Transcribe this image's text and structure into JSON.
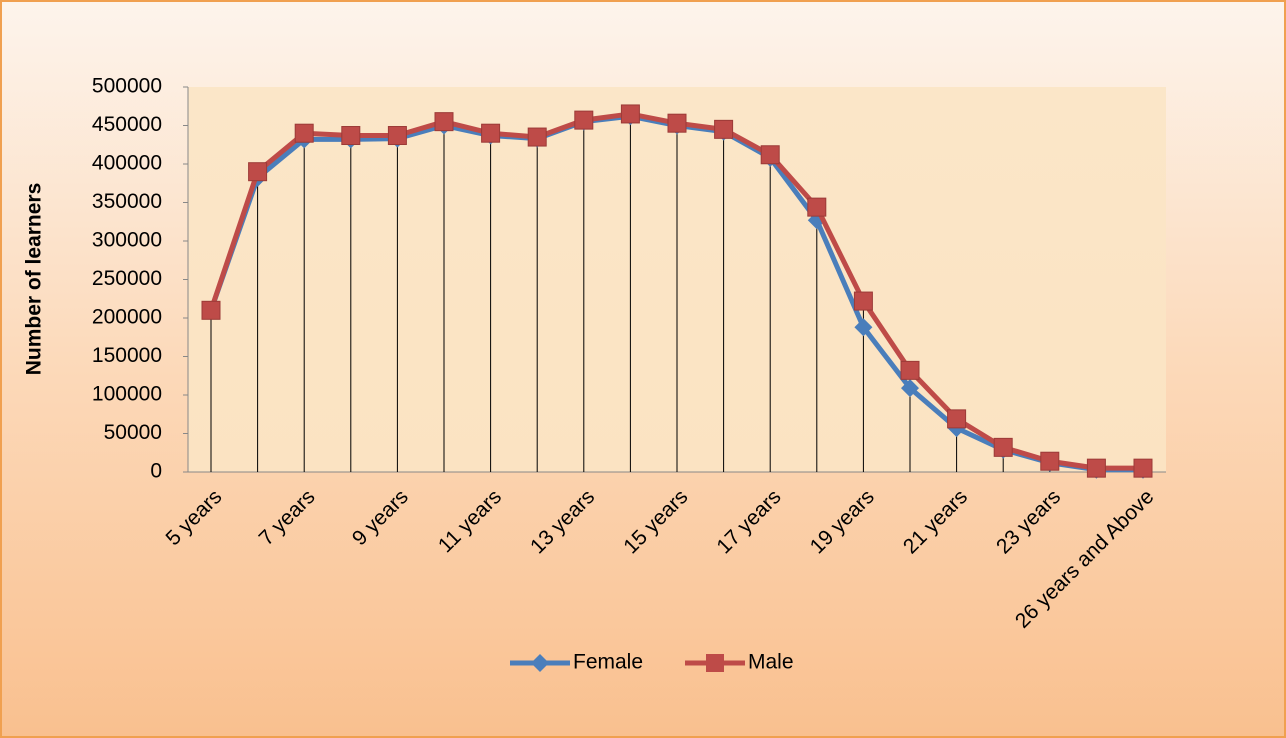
{
  "chart_data": {
    "type": "line",
    "y_axis_label": "Number of learners",
    "categories": [
      "5 years",
      null,
      "7 years",
      null,
      "9 years",
      null,
      "11 years",
      null,
      "13 years",
      null,
      "15 years",
      null,
      "17 years",
      null,
      "19 years",
      null,
      "21 years",
      null,
      "23 years",
      null,
      "26 years and Above"
    ],
    "series": [
      {
        "name": "Female",
        "color": "#4a7ebb",
        "marker": "diamond",
        "values": [
          210000,
          382000,
          432000,
          432000,
          433000,
          450000,
          437000,
          433000,
          455000,
          462000,
          450000,
          442000,
          408000,
          327000,
          188000,
          109000,
          57000,
          29000,
          12000,
          3000,
          3000
        ]
      },
      {
        "name": "Male",
        "color": "#be4b48",
        "marker": "square",
        "values": [
          210000,
          390000,
          440000,
          437000,
          437000,
          455000,
          440000,
          435000,
          457000,
          465000,
          453000,
          445000,
          412000,
          344000,
          222000,
          132000,
          69000,
          32000,
          14000,
          5000,
          5000
        ]
      }
    ],
    "ylim": [
      0,
      500000
    ],
    "yticks": [
      0,
      50000,
      100000,
      150000,
      200000,
      250000,
      300000,
      350000,
      400000,
      450000,
      500000
    ],
    "drop_lines": true,
    "legend": "bottom"
  }
}
